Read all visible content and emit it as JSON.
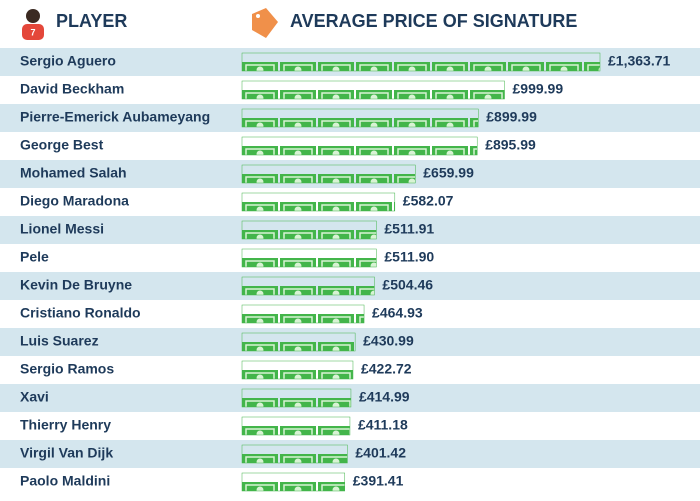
{
  "chart_data": {
    "type": "bar",
    "orientation": "horizontal",
    "category_axis_label": "PLAYER",
    "value_axis_label": "AVERAGE PRICE OF SIGNATURE",
    "categories": [
      "Sergio Aguero",
      "David Beckham",
      "Pierre-Emerick Aubameyang",
      "George Best",
      "Mohamed Salah",
      "Diego Maradona",
      "Lionel Messi",
      "Pele",
      "Kevin De Bruyne",
      "Cristiano Ronaldo",
      "Luis Suarez",
      "Sergio Ramos",
      "Xavi",
      "Thierry Henry",
      "Virgil Van Dijk",
      "Paolo Maldini"
    ],
    "values": [
      1363.71,
      999.99,
      899.99,
      895.99,
      659.99,
      582.07,
      511.91,
      511.9,
      504.46,
      464.93,
      430.99,
      422.72,
      414.99,
      411.18,
      401.42,
      391.41
    ],
    "value_labels": [
      "£1,363.71",
      "£999.99",
      "£899.99",
      "£895.99",
      "£659.99",
      "£582.07",
      "£511.91",
      "£511.90",
      "£504.46",
      "£464.93",
      "£430.99",
      "£422.72",
      "£414.99",
      "£411.18",
      "£401.42",
      "£391.41"
    ],
    "color": "#43b54a"
  }
}
